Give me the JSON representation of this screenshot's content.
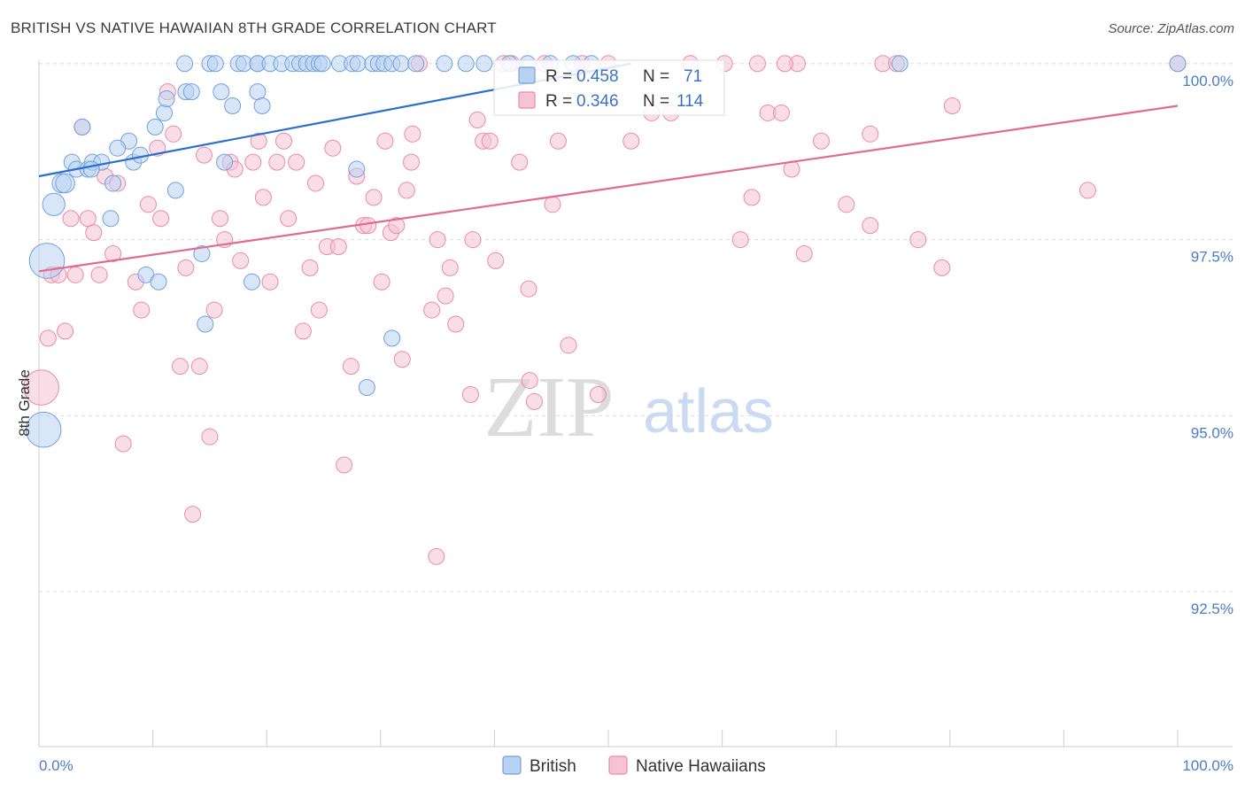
{
  "title": "BRITISH VS NATIVE HAWAIIAN 8TH GRADE CORRELATION CHART",
  "source": "Source: ZipAtlas.com",
  "watermark": {
    "zip": "ZIP",
    "atlas": "atlas"
  },
  "colors": {
    "british": "#6fa0e0",
    "british_fill": "#b9d1f2",
    "british_line": "#2a6fd0",
    "hawaiian": "#e98aa8",
    "hawaiian_fill": "#f6c3d3",
    "hawaiian_line": "#e06a92",
    "tick_text": "#4a7cc8",
    "grid": "#dddddd"
  },
  "legend": {
    "british": {
      "r_label": "R = ",
      "r_value": "0.458",
      "n_label": "N = ",
      "n_value": "71"
    },
    "hawaiian": {
      "r_label": "R = ",
      "r_value": "0.346",
      "n_label": "N = ",
      "n_value": "114"
    }
  },
  "bottom_legend": [
    "British",
    "Native Hawaiians"
  ],
  "chart_data": {
    "type": "scatter",
    "title": "BRITISH VS NATIVE HAWAIIAN 8TH GRADE CORRELATION CHART",
    "xlabel": "",
    "ylabel": "8th Grade",
    "xlim": [
      0,
      100
    ],
    "ylim": [
      90.3,
      100.4
    ],
    "x_tick_labels": [
      "0.0%",
      "100.0%"
    ],
    "y_ticks": [
      92.5,
      95.0,
      97.5,
      100.0
    ],
    "y_tick_labels": [
      "92.5%",
      "95.0%",
      "97.5%",
      "100.0%"
    ],
    "series": [
      {
        "name": "British",
        "R": 0.458,
        "N": 71,
        "trend": {
          "x0": 0,
          "y0": 98.4,
          "x1": 52,
          "y1": 100.0
        },
        "points": [
          [
            1.3,
            98.0,
            1.4
          ],
          [
            0.7,
            97.2,
            2.2
          ],
          [
            0.4,
            94.8,
            2.2
          ],
          [
            2.0,
            98.3,
            1.2
          ],
          [
            2.3,
            98.3,
            1.2
          ],
          [
            2.9,
            98.6,
            1.0
          ],
          [
            3.3,
            98.5,
            1.0
          ],
          [
            4.3,
            98.5,
            1.0
          ],
          [
            4.7,
            98.6,
            1.0
          ],
          [
            5.5,
            98.6,
            1.0
          ],
          [
            4.6,
            98.5,
            1.0
          ],
          [
            3.8,
            99.1,
            1.0
          ],
          [
            6.5,
            98.3,
            1.0
          ],
          [
            6.3,
            97.8,
            1.0
          ],
          [
            7.9,
            98.9,
            1.0
          ],
          [
            8.3,
            98.6,
            1.0
          ],
          [
            8.9,
            98.7,
            1.0
          ],
          [
            6.9,
            98.8,
            1.0
          ],
          [
            9.4,
            97.0,
            1.0
          ],
          [
            10.2,
            99.1,
            1.0
          ],
          [
            10.5,
            96.9,
            1.0
          ],
          [
            11.0,
            99.3,
            1.0
          ],
          [
            11.2,
            99.5,
            1.0
          ],
          [
            12.0,
            98.2,
            1.0
          ],
          [
            12.8,
            100.0,
            1.0
          ],
          [
            12.9,
            99.6,
            1.0
          ],
          [
            13.4,
            99.6,
            1.0
          ],
          [
            14.3,
            97.3,
            1.0
          ],
          [
            14.6,
            96.3,
            1.0
          ],
          [
            15.0,
            100.0,
            1.0
          ],
          [
            15.5,
            100.0,
            1.0
          ],
          [
            16.0,
            99.6,
            1.0
          ],
          [
            16.3,
            98.6,
            1.0
          ],
          [
            17.0,
            99.4,
            1.0
          ],
          [
            17.5,
            100.0,
            1.0
          ],
          [
            18.0,
            100.0,
            1.0
          ],
          [
            18.7,
            96.9,
            1.0
          ],
          [
            19.2,
            99.6,
            1.0
          ],
          [
            19.2,
            100.0,
            1.0
          ],
          [
            19.2,
            100.0,
            1.0
          ],
          [
            19.6,
            99.4,
            1.0
          ],
          [
            20.3,
            100.0,
            1.0
          ],
          [
            21.3,
            100.0,
            1.0
          ],
          [
            22.3,
            100.0,
            1.0
          ],
          [
            22.9,
            100.0,
            1.0
          ],
          [
            23.5,
            100.0,
            1.0
          ],
          [
            24.1,
            100.0,
            1.0
          ],
          [
            24.6,
            100.0,
            1.0
          ],
          [
            24.9,
            100.0,
            1.0
          ],
          [
            26.4,
            100.0,
            1.0
          ],
          [
            27.5,
            100.0,
            1.0
          ],
          [
            27.9,
            98.5,
            1.0
          ],
          [
            28.0,
            100.0,
            1.0
          ],
          [
            28.8,
            95.4,
            1.0
          ],
          [
            29.3,
            100.0,
            1.0
          ],
          [
            29.8,
            100.0,
            1.0
          ],
          [
            30.3,
            100.0,
            1.0
          ],
          [
            31.0,
            100.0,
            1.0
          ],
          [
            31.8,
            100.0,
            1.0
          ],
          [
            31.0,
            96.1,
            1.0
          ],
          [
            33.1,
            100.0,
            1.0
          ],
          [
            35.6,
            100.0,
            1.0
          ],
          [
            37.5,
            100.0,
            1.0
          ],
          [
            39.1,
            100.0,
            1.0
          ],
          [
            41.3,
            100.0,
            1.0
          ],
          [
            42.9,
            100.0,
            1.0
          ],
          [
            44.9,
            100.0,
            1.0
          ],
          [
            46.9,
            100.0,
            1.0
          ],
          [
            48.5,
            100.0,
            1.0
          ],
          [
            75.6,
            100.0,
            1.0
          ],
          [
            100.0,
            100.0,
            1.0
          ]
        ]
      },
      {
        "name": "Native Hawaiians",
        "R": 0.346,
        "N": 114,
        "trend": {
          "x0": 0,
          "y0": 97.05,
          "x1": 100,
          "y1": 99.4
        },
        "points": [
          [
            0.2,
            95.4,
            2.2
          ],
          [
            1.1,
            97.0,
            1.0
          ],
          [
            1.7,
            97.0,
            1.0
          ],
          [
            0.8,
            96.1,
            1.0
          ],
          [
            2.3,
            96.2,
            1.0
          ],
          [
            2.8,
            97.8,
            1.0
          ],
          [
            3.2,
            97.0,
            1.0
          ],
          [
            3.8,
            99.1,
            1.0
          ],
          [
            4.3,
            97.8,
            1.0
          ],
          [
            4.8,
            97.6,
            1.0
          ],
          [
            5.3,
            97.0,
            1.0
          ],
          [
            5.8,
            98.4,
            1.0
          ],
          [
            6.5,
            97.3,
            1.0
          ],
          [
            6.9,
            98.3,
            1.0
          ],
          [
            7.4,
            94.6,
            1.0
          ],
          [
            8.5,
            96.9,
            1.0
          ],
          [
            9.0,
            96.5,
            1.0
          ],
          [
            9.6,
            98.0,
            1.0
          ],
          [
            10.4,
            98.8,
            1.0
          ],
          [
            10.7,
            97.8,
            1.0
          ],
          [
            11.3,
            99.6,
            1.0
          ],
          [
            11.8,
            99.0,
            1.0
          ],
          [
            12.4,
            95.7,
            1.0
          ],
          [
            12.9,
            97.1,
            1.0
          ],
          [
            13.5,
            93.6,
            1.0
          ],
          [
            14.1,
            95.7,
            1.0
          ],
          [
            14.5,
            98.7,
            1.0
          ],
          [
            15.0,
            94.7,
            1.0
          ],
          [
            15.4,
            96.5,
            1.0
          ],
          [
            15.9,
            97.8,
            1.0
          ],
          [
            16.3,
            97.5,
            1.0
          ],
          [
            16.8,
            98.6,
            1.0
          ],
          [
            17.2,
            98.5,
            1.0
          ],
          [
            17.7,
            97.2,
            1.0
          ],
          [
            18.8,
            98.6,
            1.0
          ],
          [
            19.3,
            98.9,
            1.0
          ],
          [
            19.7,
            98.1,
            1.0
          ],
          [
            20.3,
            96.9,
            1.0
          ],
          [
            20.9,
            98.6,
            1.0
          ],
          [
            21.5,
            98.9,
            1.0
          ],
          [
            21.9,
            97.8,
            1.0
          ],
          [
            22.6,
            98.6,
            1.0
          ],
          [
            23.2,
            96.2,
            1.0
          ],
          [
            23.8,
            97.1,
            1.0
          ],
          [
            24.3,
            98.3,
            1.0
          ],
          [
            24.6,
            96.5,
            1.0
          ],
          [
            25.3,
            97.4,
            1.0
          ],
          [
            25.8,
            98.8,
            1.0
          ],
          [
            26.3,
            97.4,
            1.0
          ],
          [
            26.8,
            94.3,
            1.0
          ],
          [
            27.4,
            95.7,
            1.0
          ],
          [
            27.9,
            98.4,
            1.0
          ],
          [
            28.5,
            97.7,
            1.0
          ],
          [
            28.9,
            97.7,
            1.0
          ],
          [
            29.4,
            98.1,
            1.0
          ],
          [
            30.1,
            96.9,
            1.0
          ],
          [
            30.4,
            98.9,
            1.0
          ],
          [
            30.9,
            97.6,
            1.0
          ],
          [
            31.4,
            97.7,
            1.0
          ],
          [
            31.9,
            95.8,
            1.0
          ],
          [
            32.3,
            98.2,
            1.0
          ],
          [
            32.7,
            98.6,
            1.0
          ],
          [
            32.8,
            99.0,
            1.0
          ],
          [
            33.4,
            100.0,
            1.0
          ],
          [
            34.5,
            96.5,
            1.0
          ],
          [
            35.0,
            97.5,
            1.0
          ],
          [
            34.9,
            93.0,
            1.0
          ],
          [
            35.7,
            96.7,
            1.0
          ],
          [
            36.1,
            97.1,
            1.0
          ],
          [
            36.6,
            96.3,
            1.0
          ],
          [
            37.9,
            95.3,
            1.0
          ],
          [
            38.1,
            97.5,
            1.0
          ],
          [
            38.5,
            99.2,
            1.0
          ],
          [
            39.0,
            98.9,
            1.0
          ],
          [
            39.6,
            98.9,
            1.0
          ],
          [
            40.1,
            97.2,
            1.0
          ],
          [
            40.8,
            100.0,
            1.0
          ],
          [
            41.5,
            100.0,
            1.0
          ],
          [
            42.2,
            98.6,
            1.0
          ],
          [
            43.0,
            96.8,
            1.0
          ],
          [
            43.1,
            95.5,
            1.0
          ],
          [
            43.5,
            95.2,
            1.0
          ],
          [
            44.4,
            100.0,
            1.0
          ],
          [
            45.1,
            98.0,
            1.0
          ],
          [
            45.6,
            98.9,
            1.0
          ],
          [
            46.5,
            96.0,
            1.0
          ],
          [
            47.7,
            100.0,
            1.0
          ],
          [
            49.1,
            95.3,
            1.0
          ],
          [
            50.0,
            100.0,
            1.0
          ],
          [
            52.0,
            98.9,
            1.0
          ],
          [
            53.8,
            99.3,
            1.0
          ],
          [
            55.5,
            99.3,
            1.0
          ],
          [
            57.2,
            100.0,
            1.0
          ],
          [
            60.2,
            100.0,
            1.0
          ],
          [
            61.6,
            97.5,
            1.0
          ],
          [
            62.6,
            98.1,
            1.0
          ],
          [
            63.1,
            100.0,
            1.0
          ],
          [
            64.0,
            99.3,
            1.0
          ],
          [
            65.2,
            99.3,
            1.0
          ],
          [
            66.1,
            98.5,
            1.0
          ],
          [
            66.6,
            100.0,
            1.0
          ],
          [
            67.2,
            97.3,
            1.0
          ],
          [
            68.7,
            98.9,
            1.0
          ],
          [
            70.9,
            98.0,
            1.0
          ],
          [
            73.0,
            97.7,
            1.0
          ],
          [
            74.1,
            100.0,
            1.0
          ],
          [
            75.3,
            100.0,
            1.0
          ],
          [
            77.2,
            97.5,
            1.0
          ],
          [
            79.3,
            97.1,
            1.0
          ],
          [
            80.2,
            99.4,
            1.0
          ],
          [
            92.1,
            98.2,
            1.0
          ],
          [
            73.0,
            99.0,
            1.0
          ],
          [
            100.0,
            100.0,
            1.0
          ],
          [
            65.5,
            100.0,
            1.0
          ]
        ]
      }
    ]
  }
}
